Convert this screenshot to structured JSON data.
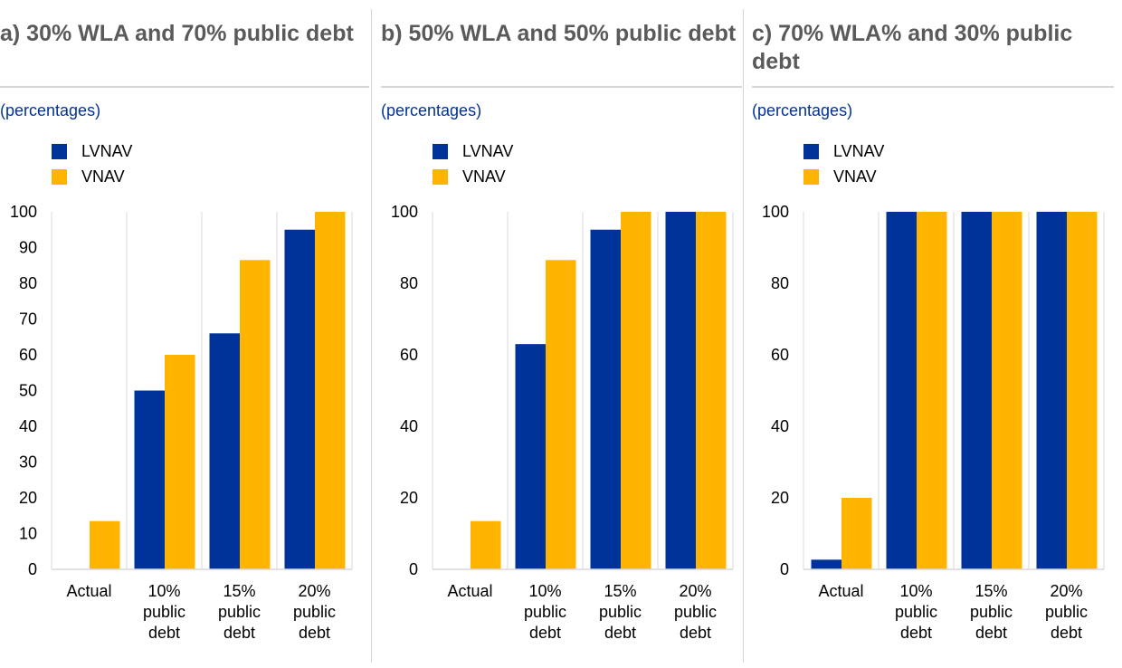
{
  "colors": {
    "lvnav": "#003399",
    "vnav": "#ffb400",
    "grid": "#d9d9d9",
    "title": "#5a5a5a",
    "unit": "#003399"
  },
  "chart_data": [
    {
      "type": "bar",
      "title": "a) 30% WLA and 70% public debt",
      "subtitle": "(percentages)",
      "categories": [
        [
          "Actual"
        ],
        [
          "10%",
          "public",
          "debt"
        ],
        [
          "15%",
          "public",
          "debt"
        ],
        [
          "20%",
          "public",
          "debt"
        ]
      ],
      "series": [
        {
          "name": "LVNAV",
          "values": [
            0,
            50,
            66,
            95
          ]
        },
        {
          "name": "VNAV",
          "values": [
            13.5,
            60,
            86.5,
            100
          ]
        }
      ],
      "ylim": [
        0,
        100
      ],
      "yticks": [
        0,
        10,
        20,
        30,
        40,
        50,
        60,
        70,
        80,
        90,
        100
      ],
      "legend": "top-left",
      "grid": "vertical"
    },
    {
      "type": "bar",
      "title": "b) 50% WLA and 50% public debt",
      "subtitle": "(percentages)",
      "categories": [
        [
          "Actual"
        ],
        [
          "10%",
          "public",
          "debt"
        ],
        [
          "15%",
          "public",
          "debt"
        ],
        [
          "20%",
          "public",
          "debt"
        ]
      ],
      "series": [
        {
          "name": "LVNAV",
          "values": [
            0,
            63,
            95,
            100
          ]
        },
        {
          "name": "VNAV",
          "values": [
            13.5,
            86.5,
            100,
            100
          ]
        }
      ],
      "ylim": [
        0,
        100
      ],
      "yticks": [
        0,
        20,
        40,
        60,
        80,
        100
      ],
      "legend": "top-left",
      "grid": "vertical"
    },
    {
      "type": "bar",
      "title": "c) 70% WLA% and 30% public debt",
      "subtitle": "(percentages)",
      "categories": [
        [
          "Actual"
        ],
        [
          "10%",
          "public",
          "debt"
        ],
        [
          "15%",
          "public",
          "debt"
        ],
        [
          "20%",
          "public",
          "debt"
        ]
      ],
      "series": [
        {
          "name": "LVNAV",
          "values": [
            2.7,
            100,
            100,
            100
          ]
        },
        {
          "name": "VNAV",
          "values": [
            20,
            100,
            100,
            100
          ]
        }
      ],
      "ylim": [
        0,
        100
      ],
      "yticks": [
        0,
        20,
        40,
        60,
        80,
        100
      ],
      "legend": "top-left",
      "grid": "vertical"
    }
  ]
}
